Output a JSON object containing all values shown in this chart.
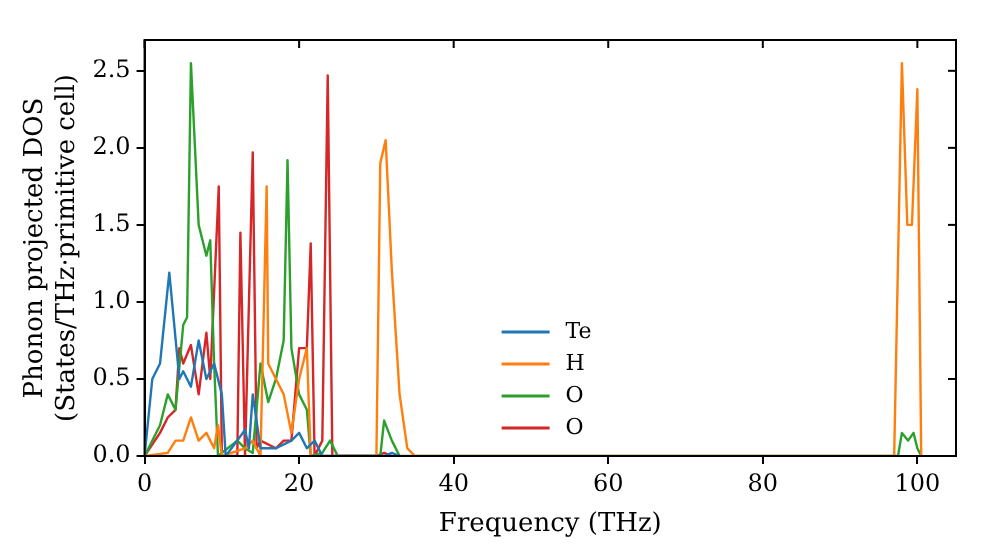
{
  "chart_data": {
    "type": "line",
    "xlabel": "Frequency (THz)",
    "ylabel": "Phonon projected DOS\n(States/THz·primitive cell)",
    "xlim": [
      0,
      105
    ],
    "xticks": [
      0,
      20,
      40,
      60,
      80,
      100
    ],
    "ylim": [
      0,
      2.7
    ],
    "yticks": [
      {
        "value": 0,
        "label": "0.0"
      },
      0.5,
      {
        "value": 1,
        "label": "1.0"
      },
      1.5,
      {
        "value": 2,
        "label": "2.0"
      },
      2.5
    ],
    "grid": false,
    "legend": "bottom",
    "marker": "none",
    "line_style": "solid",
    "series": [
      {
        "name": "Te",
        "color": "#1f77b4",
        "x": [
          0,
          1,
          2,
          3.2,
          4.5,
          5,
          6,
          7,
          8,
          9,
          10,
          10.5,
          12,
          13,
          13.5,
          14,
          15,
          17,
          19,
          20,
          21,
          22,
          23,
          31,
          32,
          33
        ],
        "values": [
          0,
          0.5,
          0.6,
          1.19,
          0.5,
          0.55,
          0.45,
          0.75,
          0.5,
          0.6,
          0.4,
          0,
          0.1,
          0.17,
          0.05,
          0.4,
          0.05,
          0.05,
          0.1,
          0.15,
          0.05,
          0.1,
          0,
          0,
          0.02,
          0
        ]
      },
      {
        "name": "H",
        "color": "#ff7f0e",
        "x": [
          0,
          3,
          4,
          5,
          6,
          7,
          8,
          9,
          9.5,
          10,
          13,
          14,
          15,
          15.8,
          16,
          17,
          18,
          19,
          20,
          21,
          21.5,
          30,
          30.5,
          31.2,
          32,
          33,
          34,
          35,
          97,
          98,
          98.7,
          99.3,
          100,
          100.5
        ],
        "values": [
          0,
          0.02,
          0.1,
          0.1,
          0.25,
          0.1,
          0.15,
          0.05,
          0.2,
          0,
          0.05,
          0.1,
          0,
          1.75,
          0.6,
          0.5,
          0.4,
          0.15,
          0.5,
          0.7,
          0,
          0,
          1.9,
          2.05,
          1.2,
          0.4,
          0.05,
          0,
          0,
          2.55,
          1.5,
          1.5,
          2.38,
          0
        ]
      },
      {
        "name": "O",
        "color": "#2ca02c",
        "x": [
          0,
          2,
          3,
          4,
          5,
          5.5,
          6,
          7,
          8,
          8.5,
          9,
          9.5,
          12,
          13,
          14,
          15,
          16,
          17,
          18,
          18.5,
          19,
          20,
          21,
          21.5,
          23,
          24,
          25,
          30.5,
          31,
          32,
          33,
          97.5,
          98,
          98.8,
          99.5,
          100,
          100.5
        ],
        "values": [
          0,
          0.2,
          0.4,
          0.3,
          0.85,
          0.9,
          2.55,
          1.5,
          1.3,
          1.4,
          0.6,
          0,
          0.1,
          0.05,
          0.02,
          0.6,
          0.35,
          0.5,
          0.75,
          1.92,
          0.7,
          0.4,
          0.3,
          0,
          0.02,
          0.1,
          0,
          0,
          0.23,
          0.1,
          0,
          0,
          0.15,
          0.1,
          0.15,
          0.05,
          0
        ]
      },
      {
        "name": "O",
        "color": "#d62728",
        "x": [
          0,
          2,
          3,
          4,
          4.5,
          5,
          6,
          7,
          8,
          8.5,
          9.6,
          10,
          12,
          12.4,
          13,
          14,
          14.5,
          15,
          17,
          18,
          19,
          20,
          21,
          21.5,
          22,
          23,
          23.7,
          24.3,
          30,
          31,
          32
        ],
        "values": [
          0,
          0.15,
          0.25,
          0.3,
          0.7,
          0.6,
          0.72,
          0.4,
          0.8,
          0.5,
          1.75,
          0,
          0,
          1.45,
          0,
          1.97,
          0.05,
          0.1,
          0.05,
          0.1,
          0.1,
          0.7,
          0.7,
          1.38,
          0,
          0.1,
          2.47,
          0,
          0,
          0.02,
          0
        ]
      }
    ]
  }
}
